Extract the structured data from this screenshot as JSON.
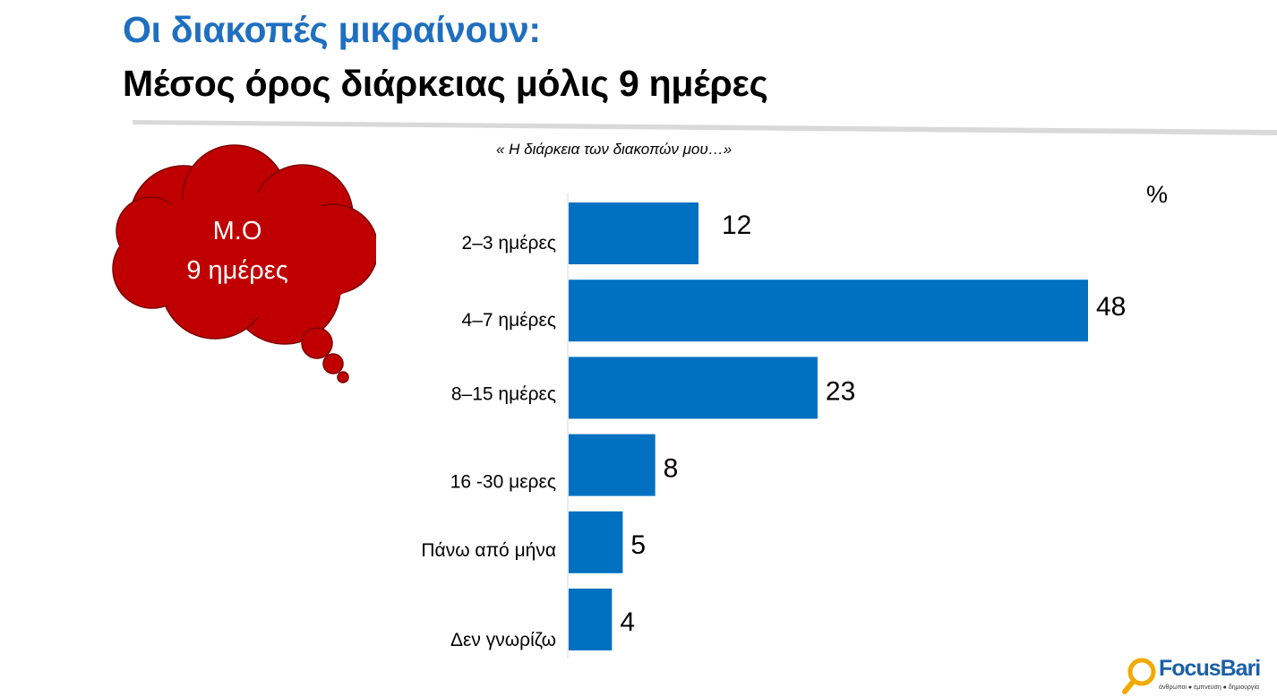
{
  "header": {
    "title_line1": "Οι διακοπές μικραίνουν:",
    "title_line2": "Μέσος όρος διάρκειας μόλις 9 ημέρες"
  },
  "callout": {
    "line1": "Μ.Ο",
    "line2": "9 ημέρες"
  },
  "logo": {
    "name": "FocusBari",
    "tagline": "άνθρωποι ● έμπνευση ● δημιουργία"
  },
  "colors": {
    "title_blue": "#1f6fc0",
    "bar_blue": "#0070c0",
    "cloud_red": "#c00000"
  },
  "chart_data": {
    "type": "bar",
    "orientation": "horizontal",
    "title": "« Η διάρκεια των διακοπών μου…»",
    "unit_label": "%",
    "categories": [
      "2–3 ημέρες",
      "4–7 ημέρες",
      "8–15 ημέρες",
      "16 -30 μερες",
      "Πάνω από μήνα",
      "Δεν γνωρίζω"
    ],
    "values": [
      12,
      48,
      23,
      8,
      5,
      4
    ],
    "xlim": [
      0,
      50
    ],
    "grid": false,
    "legend": "none"
  }
}
